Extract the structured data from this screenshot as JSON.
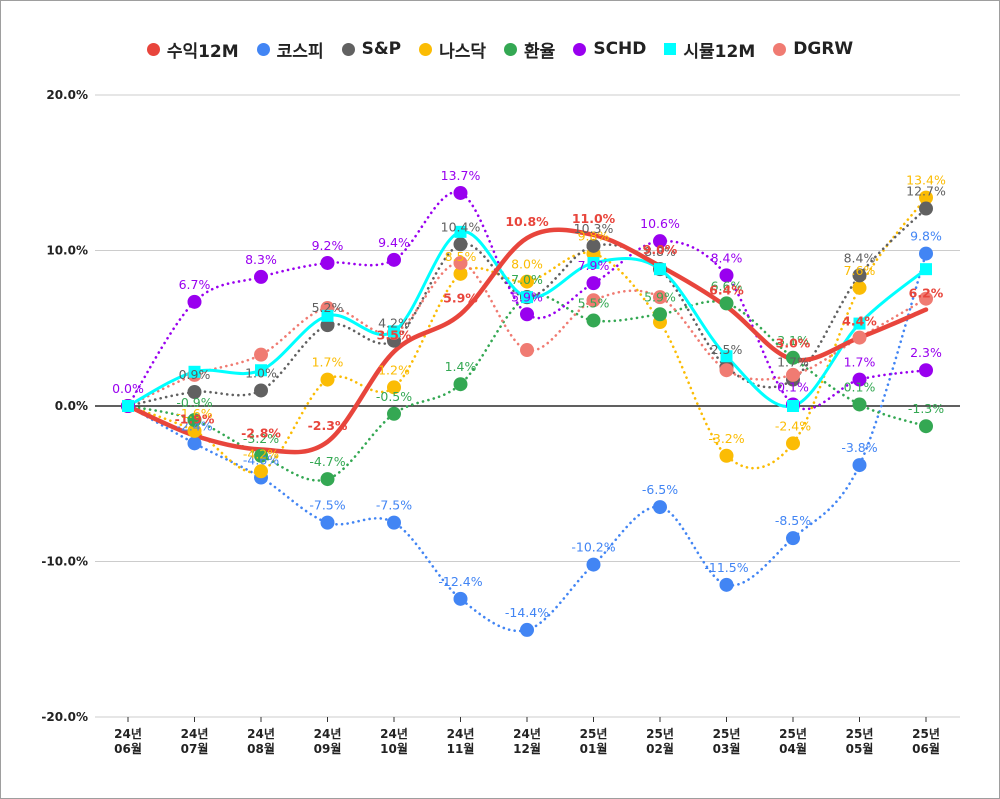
{
  "chart_data": {
    "type": "line",
    "title": "",
    "xlabel": "",
    "ylabel": "",
    "ylim": [
      -20,
      20
    ],
    "yticks": [
      20,
      10,
      0,
      -10,
      -20
    ],
    "ytick_labels": [
      "20.0%",
      "10.0%",
      "0.0%",
      "-10.0%",
      "-20.0%"
    ],
    "grid": true,
    "legend_position": "top",
    "categories": [
      [
        "24년",
        "06월"
      ],
      [
        "24년",
        "07월"
      ],
      [
        "24년",
        "08월"
      ],
      [
        "24년",
        "09월"
      ],
      [
        "24년",
        "10월"
      ],
      [
        "24년",
        "11월"
      ],
      [
        "24년",
        "12월"
      ],
      [
        "25년",
        "01월"
      ],
      [
        "25년",
        "02월"
      ],
      [
        "25년",
        "03월"
      ],
      [
        "25년",
        "04월"
      ],
      [
        "25년",
        "05월"
      ],
      [
        "25년",
        "06월"
      ]
    ],
    "series": [
      {
        "name": "수익12M",
        "color": "#e8453c",
        "marker": "none",
        "line": "solid-thick",
        "legend_marker": "circle",
        "values": [
          0,
          -1.9,
          -2.8,
          -2.3,
          3.5,
          5.9,
          10.8,
          11.0,
          9.0,
          6.4,
          3.0,
          4.4,
          6.2
        ],
        "labels": [
          "",
          "-1.9%",
          "-2.8%",
          "-2.3%",
          "3.5%",
          "5.9%",
          "10.8%",
          "11.0%",
          "9.0%",
          "6.4%",
          "3.0%",
          "4.4%",
          "6.2%"
        ]
      },
      {
        "name": "코스피",
        "color": "#4285f4",
        "marker": "circle",
        "line": "dotted",
        "legend_marker": "circle",
        "values": [
          0,
          -2.4,
          -4.6,
          -7.5,
          -7.5,
          -12.4,
          -14.4,
          -10.2,
          -6.5,
          -11.5,
          -8.5,
          -3.8,
          9.8
        ],
        "labels": [
          "",
          "-2.4%",
          "-4.6%",
          "-7.5%",
          "-7.5%",
          "-12.4%",
          "-14.4%",
          "-10.2%",
          "-6.5%",
          "-11.5%",
          "-8.5%",
          "-3.8%",
          "9.8%"
        ]
      },
      {
        "name": "S&P",
        "color": "#616161",
        "marker": "circle",
        "line": "dotted",
        "legend_marker": "circle",
        "values": [
          0,
          0.9,
          1.0,
          5.2,
          4.2,
          10.4,
          7.0,
          10.3,
          8.8,
          2.5,
          1.7,
          8.4,
          12.7
        ],
        "labels": [
          "",
          "0.9%",
          "1.0%",
          "5.2%",
          "4.2%",
          "10.4%",
          "",
          "10.3%",
          "8.8%",
          "2.5%",
          "1.7%",
          "8.4%",
          "12.7%"
        ]
      },
      {
        "name": "나스닥",
        "color": "#fbbc04",
        "marker": "circle",
        "line": "dotted",
        "legend_marker": "circle",
        "values": [
          0,
          -1.6,
          -4.2,
          1.7,
          1.2,
          8.5,
          8.0,
          9.8,
          5.4,
          -3.2,
          -2.4,
          7.6,
          13.4
        ],
        "labels": [
          "",
          "-1.6%",
          "-4.2%",
          "1.7%",
          "1.2%",
          "8.5%",
          "8.0%",
          "9.8%",
          "",
          "-3.2%",
          "-2.4%",
          "7.6%",
          "13.4%"
        ]
      },
      {
        "name": "환율",
        "color": "#34a853",
        "marker": "circle",
        "line": "dotted",
        "legend_marker": "circle",
        "values": [
          0,
          -0.9,
          -3.2,
          -4.7,
          -0.5,
          1.4,
          7.0,
          5.5,
          5.9,
          6.6,
          3.1,
          0.1,
          -1.3
        ],
        "labels": [
          "",
          "-0.9%",
          "-3.2%",
          "-4.7%",
          "-0.5%",
          "1.4%",
          "7.0%",
          "5.5%",
          "5.9%",
          "6.6%",
          "3.1%",
          "0.1%",
          "-1.3%"
        ]
      },
      {
        "name": "SCHD",
        "color": "#9900ef",
        "marker": "circle",
        "line": "dotted",
        "legend_marker": "circle",
        "values": [
          0,
          6.7,
          8.3,
          9.2,
          9.4,
          13.7,
          5.9,
          7.9,
          10.6,
          8.4,
          0.1,
          1.7,
          2.3
        ],
        "labels": [
          "0.0%",
          "6.7%",
          "8.3%",
          "9.2%",
          "9.4%",
          "13.7%",
          "5.9%",
          "7.9%",
          "10.6%",
          "8.4%",
          "0.1%",
          "1.7%",
          "2.3%"
        ]
      },
      {
        "name": "시뮬12M",
        "color": "#00ffff",
        "marker": "square",
        "line": "solid",
        "legend_marker": "square",
        "values": [
          0,
          2.2,
          2.3,
          5.8,
          4.8,
          11.2,
          7.0,
          9.2,
          8.8,
          3.2,
          0.0,
          5.3,
          8.8
        ],
        "labels": []
      },
      {
        "name": "DGRW",
        "color": "#f07b72",
        "marker": "circle",
        "line": "dotted",
        "legend_marker": "circle",
        "values": [
          0,
          2.0,
          3.3,
          6.3,
          4.7,
          9.2,
          3.6,
          6.8,
          7.0,
          2.3,
          2.0,
          4.4,
          6.9
        ],
        "labels": []
      }
    ]
  }
}
